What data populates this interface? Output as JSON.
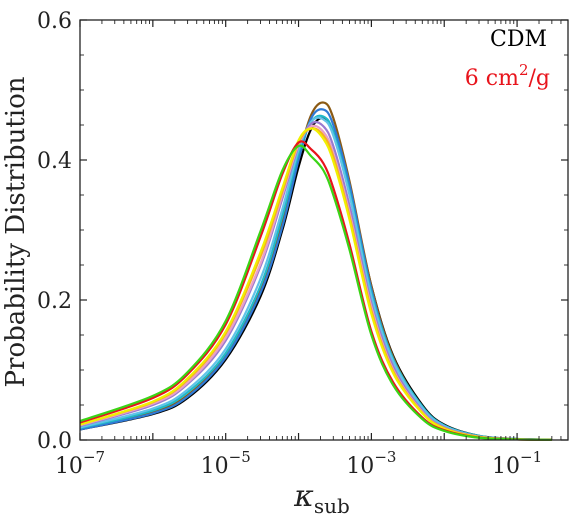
{
  "chart_data": {
    "type": "line",
    "xscale": "log",
    "xlim": [
      1e-07,
      0.5
    ],
    "ylim": [
      0,
      0.6
    ],
    "xticks": [
      {
        "value": 1e-07,
        "base": "10",
        "exp": "−7"
      },
      {
        "value": 1e-05,
        "base": "10",
        "exp": "−5"
      },
      {
        "value": 0.001,
        "base": "10",
        "exp": "−3"
      },
      {
        "value": 0.1,
        "base": "10",
        "exp": "−1"
      }
    ],
    "yticks": [
      {
        "value": 0.0,
        "label": "0.0"
      },
      {
        "value": 0.2,
        "label": "0.2"
      },
      {
        "value": 0.4,
        "label": "0.4"
      },
      {
        "value": 0.6,
        "label": "0.6"
      }
    ],
    "xlabel": {
      "main": "κ",
      "sub": "sub"
    },
    "ylabel": "Probability Distribution",
    "legend": {
      "placement": "top-right",
      "entries": [
        {
          "text": "CDM",
          "color": "#000000"
        },
        {
          "text": "6 cm",
          "sup": "2",
          "suffix": "/g",
          "color": "#e8141c"
        }
      ]
    },
    "x": [
      1e-07,
      1e-06,
      3e-06,
      1e-05,
      3e-05,
      6e-05,
      0.0001,
      0.00015,
      0.00022,
      0.0003,
      0.0005,
      0.001,
      0.002,
      0.005,
      0.01,
      0.03,
      0.1,
      0.3
    ],
    "series": [
      {
        "color": "#000000",
        "values": [
          0.015,
          0.037,
          0.06,
          0.115,
          0.205,
          0.3,
          0.39,
          0.445,
          0.46,
          0.44,
          0.36,
          0.22,
          0.12,
          0.05,
          0.022,
          0.006,
          0.0015,
          0.0005
        ]
      },
      {
        "color": "#8b5a14",
        "values": [
          0.016,
          0.04,
          0.064,
          0.12,
          0.215,
          0.31,
          0.405,
          0.465,
          0.482,
          0.46,
          0.37,
          0.22,
          0.118,
          0.047,
          0.02,
          0.005,
          0.0012,
          0.0004
        ]
      },
      {
        "color": "#2f7ad6",
        "values": [
          0.015,
          0.038,
          0.062,
          0.118,
          0.21,
          0.305,
          0.4,
          0.46,
          0.472,
          0.45,
          0.365,
          0.215,
          0.115,
          0.046,
          0.02,
          0.005,
          0.0012,
          0.0004
        ]
      },
      {
        "color": "#20b9c8",
        "values": [
          0.017,
          0.042,
          0.068,
          0.124,
          0.22,
          0.32,
          0.41,
          0.455,
          0.462,
          0.44,
          0.355,
          0.21,
          0.115,
          0.048,
          0.021,
          0.006,
          0.0015,
          0.0005
        ]
      },
      {
        "color": "#62c2e8",
        "values": [
          0.018,
          0.045,
          0.072,
          0.13,
          0.23,
          0.33,
          0.415,
          0.455,
          0.458,
          0.435,
          0.35,
          0.205,
          0.112,
          0.046,
          0.02,
          0.005,
          0.0013,
          0.0004
        ]
      },
      {
        "color": "#9a7ad0",
        "values": [
          0.02,
          0.05,
          0.08,
          0.142,
          0.248,
          0.345,
          0.42,
          0.452,
          0.448,
          0.42,
          0.335,
          0.195,
          0.105,
          0.042,
          0.018,
          0.005,
          0.0012,
          0.0004
        ]
      },
      {
        "color": "#e8a0c8",
        "values": [
          0.021,
          0.052,
          0.082,
          0.146,
          0.252,
          0.35,
          0.422,
          0.448,
          0.44,
          0.41,
          0.325,
          0.19,
          0.1,
          0.04,
          0.017,
          0.0045,
          0.0011,
          0.0004
        ]
      },
      {
        "color": "#f5b020",
        "values": [
          0.022,
          0.054,
          0.086,
          0.152,
          0.262,
          0.355,
          0.425,
          0.445,
          0.435,
          0.405,
          0.32,
          0.185,
          0.098,
          0.039,
          0.017,
          0.0045,
          0.0011,
          0.0004
        ]
      },
      {
        "color": "#f0f000",
        "values": [
          0.022,
          0.055,
          0.088,
          0.155,
          0.268,
          0.36,
          0.428,
          0.445,
          0.43,
          0.398,
          0.315,
          0.18,
          0.095,
          0.038,
          0.016,
          0.004,
          0.001,
          0.0004
        ]
      },
      {
        "color": "#e8141c",
        "values": [
          0.025,
          0.06,
          0.094,
          0.165,
          0.29,
          0.38,
          0.425,
          0.415,
          0.395,
          0.36,
          0.28,
          0.155,
          0.082,
          0.032,
          0.014,
          0.0035,
          0.0009,
          0.0003
        ]
      },
      {
        "color": "#3ad416",
        "values": [
          0.027,
          0.063,
          0.097,
          0.17,
          0.298,
          0.385,
          0.42,
          0.405,
          0.385,
          0.35,
          0.272,
          0.15,
          0.078,
          0.03,
          0.013,
          0.0032,
          0.0008,
          0.0003
        ]
      }
    ]
  }
}
